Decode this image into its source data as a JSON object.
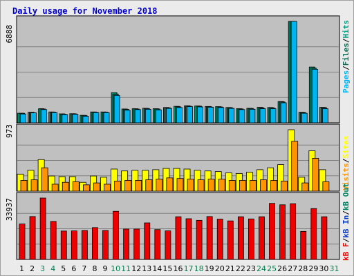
{
  "title": "Daily usage for November 2018",
  "colors": {
    "pages": "#00b4f0",
    "files": "#0e6b55",
    "hits": "#009e80",
    "visits": "#ffff00",
    "sites": "#ff9400",
    "kbf": "#ee0000",
    "kbin": "#0038c0",
    "kbout": "#008060",
    "weekend": "#008050",
    "day": "#000000"
  },
  "chart_data": [
    {
      "type": "bar",
      "panel": "hits-files-pages",
      "ymax_label": "6888",
      "ylim": [
        0,
        6888
      ],
      "categories": [
        "1",
        "2",
        "3",
        "4",
        "5",
        "6",
        "7",
        "8",
        "9",
        "10",
        "11",
        "12",
        "13",
        "14",
        "15",
        "16",
        "17",
        "18",
        "19",
        "20",
        "21",
        "22",
        "23",
        "24",
        "25",
        "26",
        "27",
        "28",
        "29",
        "30",
        "31"
      ],
      "legend": [
        "Pages",
        "/",
        "Files",
        "/",
        "Hits"
      ],
      "series": [
        {
          "name": "Hits",
          "values": [
            650,
            720,
            960,
            740,
            610,
            620,
            510,
            740,
            740,
            2050,
            940,
            960,
            990,
            960,
            1040,
            1120,
            1160,
            1150,
            1110,
            1100,
            1040,
            960,
            990,
            1050,
            1040,
            1450,
            6888,
            720,
            3790,
            1050,
            0
          ]
        },
        {
          "name": "Files",
          "values": [
            650,
            700,
            940,
            730,
            590,
            610,
            500,
            730,
            730,
            1960,
            920,
            940,
            970,
            940,
            1020,
            1090,
            1140,
            1130,
            1090,
            1080,
            1020,
            940,
            970,
            1020,
            1020,
            1420,
            6888,
            700,
            3720,
            1030,
            0
          ]
        },
        {
          "name": "Pages",
          "values": [
            600,
            680,
            900,
            700,
            560,
            580,
            450,
            700,
            700,
            1860,
            860,
            900,
            920,
            880,
            980,
            1040,
            1100,
            1080,
            1060,
            1040,
            980,
            900,
            920,
            960,
            960,
            1360,
            6888,
            650,
            3640,
            960,
            0
          ]
        }
      ]
    },
    {
      "type": "bar",
      "panel": "visits-sites",
      "ymax_label": "973",
      "ylim": [
        0,
        973
      ],
      "categories": [
        "1",
        "2",
        "3",
        "4",
        "5",
        "6",
        "7",
        "8",
        "9",
        "10",
        "11",
        "12",
        "13",
        "14",
        "15",
        "16",
        "17",
        "18",
        "19",
        "20",
        "21",
        "22",
        "23",
        "24",
        "25",
        "26",
        "27",
        "28",
        "29",
        "30",
        "31"
      ],
      "legend": [
        "Visits",
        "/",
        "Sites"
      ],
      "series": [
        {
          "name": "Visits",
          "values": [
            270,
            330,
            500,
            240,
            230,
            230,
            140,
            240,
            220,
            350,
            320,
            330,
            330,
            340,
            360,
            360,
            350,
            330,
            320,
            310,
            290,
            280,
            300,
            340,
            370,
            420,
            973,
            220,
            640,
            340,
            0
          ]
        },
        {
          "name": "Sites",
          "values": [
            170,
            180,
            370,
            110,
            140,
            150,
            100,
            130,
            110,
            160,
            170,
            170,
            180,
            190,
            210,
            200,
            190,
            180,
            190,
            190,
            170,
            170,
            170,
            180,
            170,
            160,
            790,
            130,
            520,
            150,
            0
          ]
        }
      ]
    },
    {
      "type": "bar",
      "panel": "kbf-kbin-kbout",
      "ymax_label": "33937",
      "ylim": [
        0,
        33937
      ],
      "categories": [
        "1",
        "2",
        "3",
        "4",
        "5",
        "6",
        "7",
        "8",
        "9",
        "10",
        "11",
        "12",
        "13",
        "14",
        "15",
        "16",
        "17",
        "18",
        "19",
        "20",
        "21",
        "22",
        "23",
        "24",
        "25",
        "26",
        "27",
        "28",
        "29",
        "30",
        "31"
      ],
      "legend": [
        "kB F",
        "/",
        "kB In",
        "/",
        "kB Out"
      ],
      "series": [
        {
          "name": "kB F",
          "values": [
            19600,
            23700,
            33937,
            21000,
            15700,
            15800,
            16000,
            17600,
            16000,
            26600,
            16800,
            16800,
            20200,
            16500,
            15800,
            23600,
            22500,
            21600,
            23700,
            22300,
            21300,
            23600,
            22400,
            23600,
            31000,
            30200,
            30800,
            15500,
            28100,
            23600,
            0
          ]
        }
      ]
    }
  ],
  "x_labels": [
    "1",
    "2",
    "3",
    "4",
    "5",
    "6",
    "7",
    "8",
    "9",
    "10",
    "11",
    "12",
    "13",
    "14",
    "15",
    "16",
    "17",
    "18",
    "19",
    "20",
    "21",
    "22",
    "23",
    "24",
    "25",
    "26",
    "27",
    "28",
    "29",
    "30",
    "31"
  ],
  "weekend_days": [
    3,
    4,
    10,
    11,
    17,
    18,
    24,
    25,
    31
  ]
}
